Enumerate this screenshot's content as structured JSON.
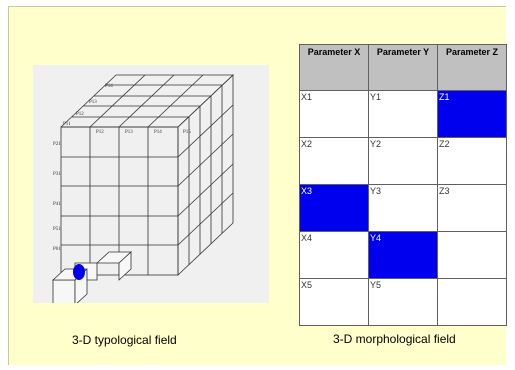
{
  "cube": {
    "caption": "3-D typological field",
    "labels": [
      "P14",
      "P13",
      "P12",
      "P11",
      "P12",
      "P13",
      "P14",
      "P15",
      "P21",
      "P31",
      "P41",
      "P51",
      "P61"
    ],
    "marker_color": "#0000ee"
  },
  "table": {
    "caption": "3-D morphological field",
    "headers": [
      "Parameter X",
      "Parameter Y",
      "Parameter Z"
    ],
    "rows": [
      [
        "X1",
        "Y1",
        "Z1"
      ],
      [
        "X2",
        "Y2",
        "Z2"
      ],
      [
        "X3",
        "Y3",
        "Z3"
      ],
      [
        "X4",
        "Y4",
        ""
      ],
      [
        "X5",
        "Y5",
        ""
      ]
    ],
    "selected": [
      [
        0,
        2
      ],
      [
        2,
        0
      ],
      [
        3,
        1
      ]
    ],
    "highlight_color": "#0000ee"
  }
}
